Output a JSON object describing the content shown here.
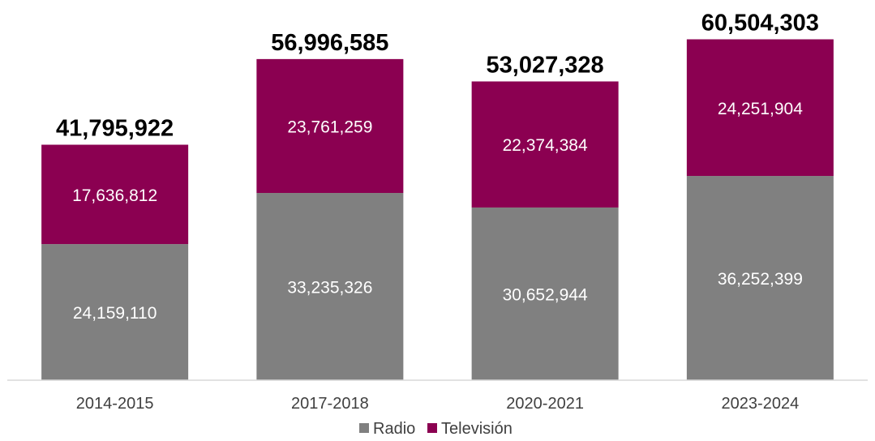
{
  "chart_data": {
    "type": "bar",
    "stacked": true,
    "categories": [
      "2014-2015",
      "2017-2018",
      "2020-2021",
      "2023-2024"
    ],
    "series": [
      {
        "name": "Radio",
        "color": "#808080",
        "values": [
          24159110,
          33235326,
          30652944,
          36252399
        ],
        "labels": [
          "24,159,110",
          "33,235,326",
          "30,652,944",
          "36,252,399"
        ]
      },
      {
        "name": "Televisión",
        "color": "#8B0051",
        "values": [
          17636812,
          23761259,
          22374384,
          24251904
        ],
        "labels": [
          "17,636,812",
          "23,761,259",
          "22,374,384",
          "24,251,904"
        ]
      }
    ],
    "totals": [
      41795922,
      56996585,
      53027328,
      60504303
    ],
    "total_labels": [
      "41,795,922",
      "56,996,585",
      "53,027,328",
      "60,504,303"
    ],
    "title": "",
    "xlabel": "",
    "ylabel": "",
    "ylim": [
      0,
      70000000
    ],
    "grid": false,
    "legend_position": "bottom"
  }
}
